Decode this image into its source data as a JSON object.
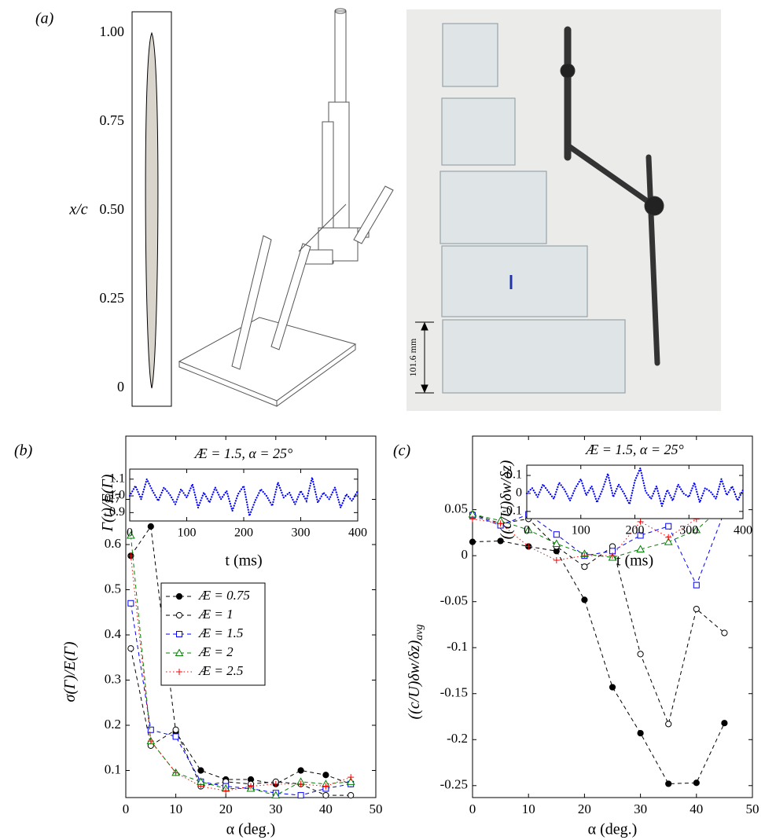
{
  "panel_labels": [
    "(a)",
    "(b)",
    "(c)"
  ],
  "photo": {
    "scale_label": "101.6 mm"
  },
  "chart_data": [
    {
      "type": "profile",
      "ylabel": "x/c",
      "ylim": [
        0,
        1
      ],
      "yticks": [
        0,
        {
          "value": 0.25,
          "label": "0.25"
        },
        {
          "value": 0.5,
          "label": "0.50"
        },
        {
          "value": 0.75,
          "label": "0.75"
        },
        {
          "value": 1,
          "label": "1.00"
        }
      ],
      "color": "#d9d5cd"
    },
    {
      "type": "line",
      "xlabel": "α (deg.)",
      "ylabel": "σ(Γ)/E(Γ)",
      "xlim": [
        0,
        50
      ],
      "xticks": [
        0,
        10,
        20,
        30,
        40,
        50
      ],
      "ylim": [
        0.04,
        0.84
      ],
      "yticks": [
        0.1,
        0.2,
        0.3,
        0.4,
        0.5,
        0.6,
        0.7
      ],
      "legend": "center",
      "x": [
        1,
        5,
        10,
        15,
        20,
        25,
        30,
        35,
        40,
        45
      ],
      "series": [
        {
          "name": "Æ = 0.75",
          "color": "#000000",
          "marker": "filled-circle",
          "dash": "dashed",
          "values": [
            0.575,
            0.64,
            0.185,
            0.1,
            0.08,
            0.08,
            0.07,
            0.1,
            0.09,
            0.07
          ]
        },
        {
          "name": "Æ = 1",
          "color": "#000000",
          "marker": "circle",
          "dash": "dashed",
          "values": [
            0.37,
            0.155,
            0.19,
            0.065,
            0.075,
            0.07,
            0.075,
            0.07,
            0.045,
            0.045
          ]
        },
        {
          "name": "Æ = 1.5",
          "color": "#0000ff",
          "marker": "square",
          "dash": "dashed",
          "values": [
            0.47,
            0.19,
            0.175,
            0.075,
            0.065,
            0.06,
            0.05,
            0.045,
            0.06,
            0.07
          ]
        },
        {
          "name": "Æ = 2",
          "color": "#008000",
          "marker": "triangle",
          "dash": "dashed",
          "values": [
            0.62,
            0.165,
            0.095,
            0.075,
            0.06,
            0.06,
            0.045,
            0.075,
            0.07,
            0.075
          ]
        },
        {
          "name": "Æ = 2.5",
          "color": "#ff0000",
          "marker": "plus",
          "dash": "dotted",
          "values": [
            0.575,
            0.165,
            0.095,
            0.065,
            0.055,
            0.065,
            0.07,
            0.07,
            0.065,
            0.085
          ]
        }
      ]
    },
    {
      "type": "line",
      "title": "Æ = 1.5, α = 25°",
      "xlabel": "t (ms)",
      "ylabel": "Γ(t)/E(Γ)",
      "xlim": [
        0,
        400
      ],
      "xticks": [
        0,
        100,
        200,
        300,
        400
      ],
      "ylim": [
        0.85,
        1.16
      ],
      "yticks": [
        0.9,
        {
          "value": 1.0,
          "label": "1.0"
        },
        1.1
      ],
      "x": [
        0,
        10,
        20,
        30,
        40,
        50,
        60,
        70,
        80,
        90,
        100,
        110,
        120,
        130,
        140,
        150,
        160,
        170,
        180,
        190,
        200,
        210,
        220,
        230,
        240,
        250,
        260,
        270,
        280,
        290,
        300,
        310,
        320,
        330,
        340,
        350,
        360,
        370,
        380,
        390,
        400
      ],
      "series": [
        {
          "color": "#0000ff",
          "marker": "none",
          "dash": "dots",
          "values": [
            1.0,
            1.06,
            0.98,
            1.1,
            1.03,
            0.97,
            1.05,
            1.01,
            0.95,
            1.04,
            0.99,
            1.07,
            0.93,
            1.02,
            0.96,
            1.05,
            0.98,
            1.03,
            0.91,
            1.01,
            1.06,
            0.88,
            0.97,
            1.04,
            1.0,
            0.94,
            1.08,
            0.99,
            1.02,
            0.95,
            1.03,
            0.97,
            1.11,
            0.96,
            1.02,
            0.98,
            1.05,
            0.93,
            1.01,
            0.97,
            1.03
          ]
        }
      ]
    },
    {
      "type": "line",
      "xlabel": "α (deg.)",
      "ylabel": "((c/U)δw/δz)",
      "ylabel_sub": "avg",
      "xlim": [
        0,
        50
      ],
      "xticks": [
        0,
        10,
        20,
        30,
        40,
        50
      ],
      "ylim": [
        -0.263,
        0.13
      ],
      "yticks": [
        -0.25,
        -0.2,
        -0.15,
        -0.1,
        -0.05,
        0,
        0.05
      ],
      "x": [
        0,
        5,
        10,
        15,
        20,
        25,
        30,
        35,
        40,
        45
      ],
      "series": [
        {
          "color": "#000000",
          "marker": "filled-circle",
          "dash": "dashed",
          "values": [
            0.015,
            0.016,
            0.01,
            0.005,
            -0.048,
            -0.143,
            -0.193,
            -0.248,
            -0.247,
            -0.182
          ]
        },
        {
          "color": "#000000",
          "marker": "circle",
          "dash": "dashed",
          "values": [
            0.045,
            0.035,
            0.04,
            0.01,
            -0.012,
            0.01,
            -0.107,
            -0.183,
            -0.058,
            -0.084
          ]
        },
        {
          "color": "#0000ff",
          "marker": "square",
          "dash": "dashed",
          "values": [
            0.044,
            0.033,
            0.045,
            0.023,
            0.0,
            0.005,
            0.022,
            0.032,
            -0.032,
            0.048
          ]
        },
        {
          "color": "#008000",
          "marker": "triangle",
          "dash": "dashed",
          "values": [
            0.045,
            0.038,
            0.028,
            0.013,
            0.002,
            -0.002,
            0.007,
            0.015,
            0.028,
            0.055
          ]
        },
        {
          "color": "#ff0000",
          "marker": "plus",
          "dash": "dotted",
          "values": [
            0.04,
            0.035,
            0.01,
            -0.005,
            0.0,
            0.0,
            0.037,
            0.02,
            0.04,
            0.077
          ]
        }
      ]
    },
    {
      "type": "line",
      "title": "Æ = 1.5, α = 25°",
      "xlabel": "t (ms)",
      "ylabel": "((c/U)δw/δz)",
      "xlim": [
        0,
        400
      ],
      "xticks": [
        0,
        100,
        200,
        300,
        400
      ],
      "ylim": [
        -0.14,
        0.157
      ],
      "yticks": [
        -0.1,
        0,
        0.1
      ],
      "x": [
        0,
        10,
        20,
        30,
        40,
        50,
        60,
        70,
        80,
        90,
        100,
        110,
        120,
        130,
        140,
        150,
        160,
        170,
        180,
        190,
        200,
        210,
        220,
        230,
        240,
        250,
        260,
        270,
        280,
        290,
        300,
        310,
        320,
        330,
        340,
        350,
        360,
        370,
        380,
        390,
        400
      ],
      "series": [
        {
          "color": "#0000ff",
          "marker": "none",
          "dash": "dots",
          "values": [
            0.0,
            0.03,
            -0.02,
            0.05,
            0.01,
            -0.03,
            0.06,
            0.02,
            -0.04,
            0.03,
            0.08,
            -0.01,
            0.04,
            -0.05,
            0.02,
            0.11,
            -0.02,
            0.05,
            0.0,
            -0.06,
            0.07,
            0.14,
            0.01,
            -0.03,
            0.04,
            -0.07,
            0.02,
            -0.04,
            0.05,
            0.0,
            -0.02,
            0.06,
            -0.05,
            0.03,
            0.01,
            -0.03,
            0.08,
            -0.01,
            0.04,
            -0.04,
            0.02
          ]
        }
      ]
    }
  ]
}
